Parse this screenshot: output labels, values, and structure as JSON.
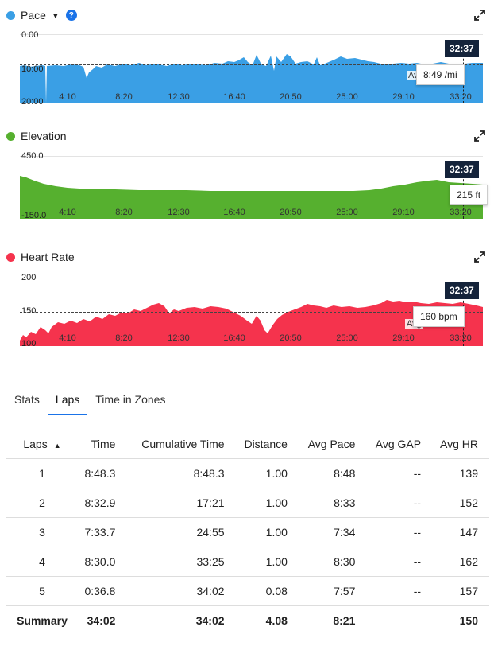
{
  "x_ticks": [
    "4:10",
    "8:20",
    "12:30",
    "16:40",
    "20:50",
    "25:00",
    "29:10",
    "33:20"
  ],
  "cursor_time": "32:37",
  "avg_label": "Avg",
  "pace": {
    "title": "Pace",
    "color": "#3a9fe5",
    "y_ticks": [
      "0:00",
      "10:00",
      "20:00"
    ],
    "tooltip": "8:49 /mi"
  },
  "elevation": {
    "title": "Elevation",
    "color": "#56b02f",
    "y_ticks": [
      "450.0",
      "-150.0"
    ],
    "tooltip": "215 ft"
  },
  "heart_rate": {
    "title": "Heart Rate",
    "color": "#f5334d",
    "y_ticks": [
      "200",
      "150",
      "100"
    ],
    "tooltip": "160 bpm"
  },
  "tabs": [
    "Stats",
    "Laps",
    "Time in Zones"
  ],
  "active_tab": "Laps",
  "table": {
    "headers": [
      "Laps",
      "Time",
      "Cumulative Time",
      "Distance",
      "Avg Pace",
      "Avg GAP",
      "Avg HR"
    ],
    "rows": [
      [
        "1",
        "8:48.3",
        "8:48.3",
        "1.00",
        "8:48",
        "--",
        "139"
      ],
      [
        "2",
        "8:32.9",
        "17:21",
        "1.00",
        "8:33",
        "--",
        "152"
      ],
      [
        "3",
        "7:33.7",
        "24:55",
        "1.00",
        "7:34",
        "--",
        "147"
      ],
      [
        "4",
        "8:30.0",
        "33:25",
        "1.00",
        "8:30",
        "--",
        "162"
      ],
      [
        "5",
        "0:36.8",
        "34:02",
        "0.08",
        "7:57",
        "--",
        "157"
      ]
    ],
    "summary": [
      "Summary",
      "34:02",
      "34:02",
      "4.08",
      "8:21",
      "",
      "150"
    ]
  }
}
